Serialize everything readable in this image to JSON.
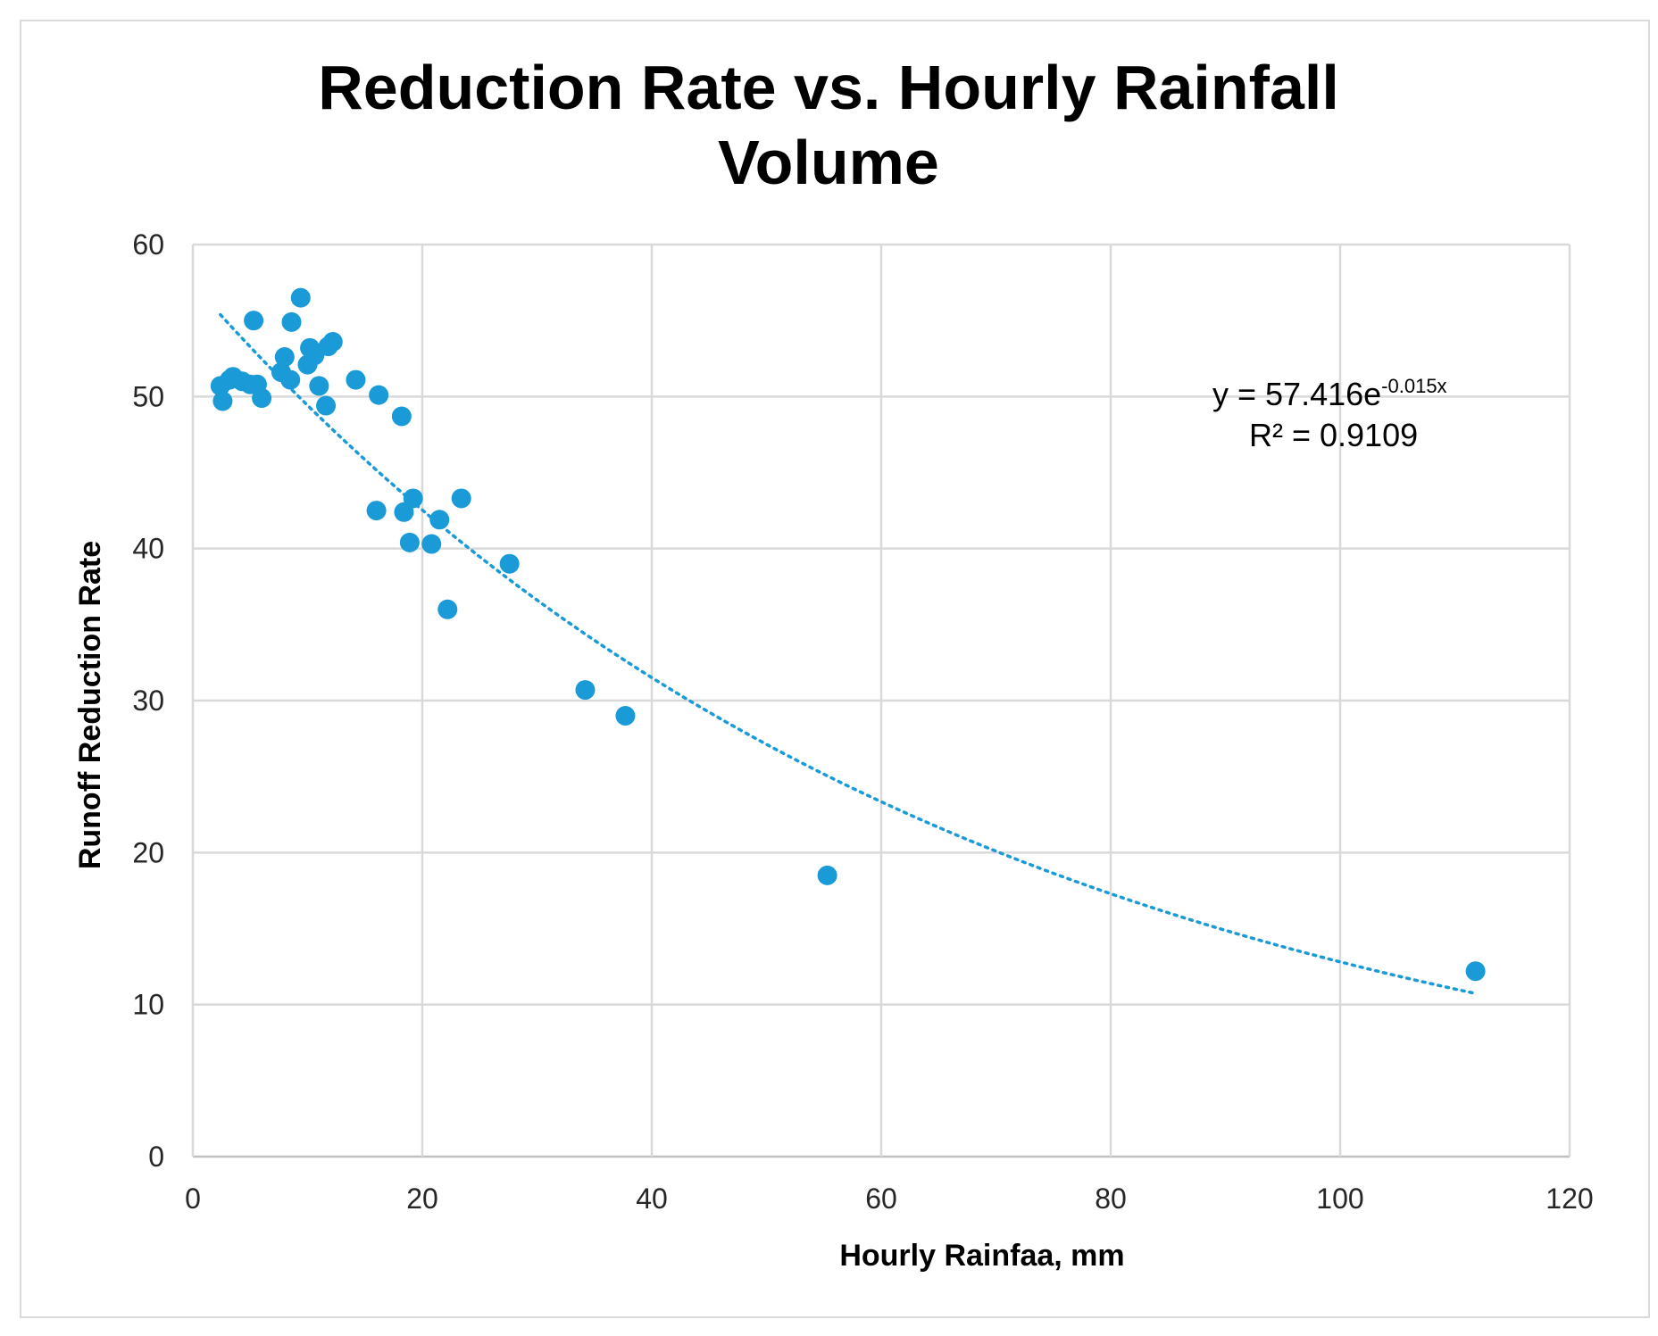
{
  "colors": {
    "marker": "#1a9ad6",
    "trendline": "#1a9ad6",
    "grid": "#d9d9d9",
    "frame": "#d9d9d9",
    "text": "#000000"
  },
  "chart_data": {
    "type": "scatter",
    "title_lines": [
      "Reduction Rate vs. Hourly Rainfall",
      "Volume"
    ],
    "xlabel": "Hourly  Rainfaa, mm",
    "ylabel": "Runoff Reduction Rate",
    "xlim": [
      0,
      120
    ],
    "ylim": [
      0,
      60
    ],
    "x_ticks": [
      0,
      20,
      40,
      60,
      80,
      100,
      120
    ],
    "y_ticks": [
      0,
      10,
      20,
      30,
      40,
      50,
      60
    ],
    "grid": true,
    "series": [
      {
        "name": "Runoff Reduction Rate",
        "points": [
          {
            "x": 2.4,
            "y": 50.7
          },
          {
            "x": 2.6,
            "y": 49.7
          },
          {
            "x": 3.2,
            "y": 51.1
          },
          {
            "x": 3.5,
            "y": 51.3
          },
          {
            "x": 4.3,
            "y": 51.0
          },
          {
            "x": 5.0,
            "y": 50.8
          },
          {
            "x": 5.3,
            "y": 55.0
          },
          {
            "x": 5.6,
            "y": 50.8
          },
          {
            "x": 6.0,
            "y": 49.9
          },
          {
            "x": 7.7,
            "y": 51.6
          },
          {
            "x": 8.0,
            "y": 52.6
          },
          {
            "x": 8.5,
            "y": 51.1
          },
          {
            "x": 8.6,
            "y": 54.9
          },
          {
            "x": 9.4,
            "y": 56.5
          },
          {
            "x": 10.0,
            "y": 52.1
          },
          {
            "x": 10.2,
            "y": 53.2
          },
          {
            "x": 10.6,
            "y": 52.7
          },
          {
            "x": 11.0,
            "y": 50.7
          },
          {
            "x": 11.6,
            "y": 49.4
          },
          {
            "x": 11.8,
            "y": 53.3
          },
          {
            "x": 12.2,
            "y": 53.6
          },
          {
            "x": 14.2,
            "y": 51.1
          },
          {
            "x": 16.0,
            "y": 42.5
          },
          {
            "x": 16.2,
            "y": 50.1
          },
          {
            "x": 18.2,
            "y": 48.7
          },
          {
            "x": 18.4,
            "y": 42.4
          },
          {
            "x": 18.9,
            "y": 40.4
          },
          {
            "x": 19.2,
            "y": 43.3
          },
          {
            "x": 20.8,
            "y": 40.3
          },
          {
            "x": 21.5,
            "y": 41.9
          },
          {
            "x": 22.2,
            "y": 36.0
          },
          {
            "x": 23.4,
            "y": 43.3
          },
          {
            "x": 27.6,
            "y": 39.0
          },
          {
            "x": 34.2,
            "y": 30.7
          },
          {
            "x": 37.7,
            "y": 29.0
          },
          {
            "x": 55.3,
            "y": 18.5
          },
          {
            "x": 111.8,
            "y": 12.2
          }
        ]
      }
    ],
    "trendline": {
      "type": "exponential",
      "a": 57.416,
      "b": -0.015,
      "x_range": [
        2.4,
        111.8
      ],
      "style": "dotted"
    },
    "annotation": {
      "equation_prefix": "y = 57.416e",
      "equation_exponent": "-0.015x",
      "r_squared": "R² = 0.9109"
    }
  }
}
